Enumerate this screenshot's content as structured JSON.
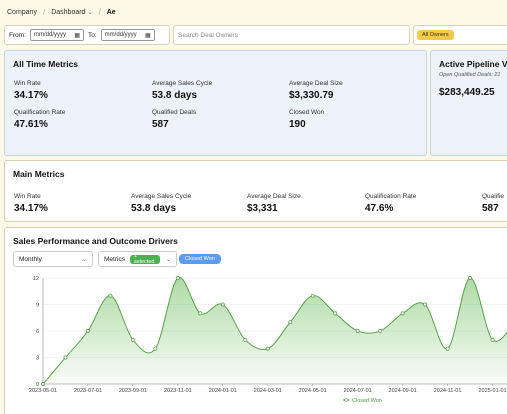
{
  "breadcrumb": {
    "items": [
      "Company",
      "Dashboard",
      "Ae"
    ]
  },
  "filters": {
    "from_label": "From:",
    "to_label": "To:",
    "from_placeholder": "mm/dd/yyyy",
    "to_placeholder": "mm/dd/yyyy",
    "search_placeholder": "Search Deal Owners",
    "owners_badge": "All Owners"
  },
  "all_time": {
    "title": "All Time Metrics",
    "metrics": [
      {
        "label": "Win Rate",
        "value": "34.17%"
      },
      {
        "label": "Average Sales Cycle",
        "value": "53.8 days"
      },
      {
        "label": "Average Deal Size",
        "value": "$3,330.79"
      },
      {
        "label": "Qualification Rate",
        "value": "47.61%"
      },
      {
        "label": "Qualified Deals",
        "value": "587"
      },
      {
        "label": "Closed Won",
        "value": "190"
      }
    ]
  },
  "pipeline": {
    "title": "Active Pipeline Val",
    "subtitle": "Open Qualified Deals: 21",
    "value": "$283,449.25"
  },
  "main": {
    "title": "Main Metrics",
    "metrics": [
      {
        "label": "Win Rate",
        "value": "34.17%"
      },
      {
        "label": "Average Sales Cycle",
        "value": "53.8 days"
      },
      {
        "label": "Average Deal Size",
        "value": "$3,331"
      },
      {
        "label": "Qualification Rate",
        "value": "47.6%"
      },
      {
        "label": "Qualifie",
        "value": "587"
      }
    ]
  },
  "chart_section": {
    "title": "Sales Performance and Outcome Drivers",
    "period": "Monthly",
    "metrics_label": "Metrics",
    "selected_badge": "1 selected",
    "active_metric": "Closed Won"
  },
  "colors": {
    "line": "#4a9a3c",
    "fill": "#6cbd5a",
    "accent_yellow": "#f2c94c",
    "accent_blue": "#5b9cf0",
    "accent_green": "#4caf50"
  },
  "chart_data": {
    "type": "area",
    "x": [
      "2023-05-01",
      "2023-06-01",
      "2023-07-01",
      "2023-08-01",
      "2023-09-01",
      "2023-10-01",
      "2023-11-01",
      "2023-12-01",
      "2024-01-01",
      "2024-02-01",
      "2024-03-01",
      "2024-04-01",
      "2024-05-01",
      "2024-06-01",
      "2024-07-01",
      "2024-08-01",
      "2024-09-01",
      "2024-10-01",
      "2024-11-01",
      "2024-12-01",
      "2025-01-01",
      "2025-02-01"
    ],
    "x_ticks": [
      "2023-05-01",
      "2023-07-01",
      "2023-09-01",
      "2023-11-01",
      "2024-01-01",
      "2024-03-01",
      "2024-05-01",
      "2024-07-01",
      "2024-09-01",
      "2024-11-01",
      "2025-01-01"
    ],
    "series": [
      {
        "name": "Closed Won",
        "values": [
          0,
          3,
          6,
          10,
          5,
          4,
          12,
          8,
          9,
          5,
          4,
          7,
          10,
          8,
          6,
          6,
          8,
          9,
          4,
          12,
          5,
          7
        ]
      }
    ],
    "y_ticks": [
      0,
      3,
      6,
      9,
      12
    ],
    "ylim": [
      0,
      12
    ],
    "legend": "bottom"
  }
}
